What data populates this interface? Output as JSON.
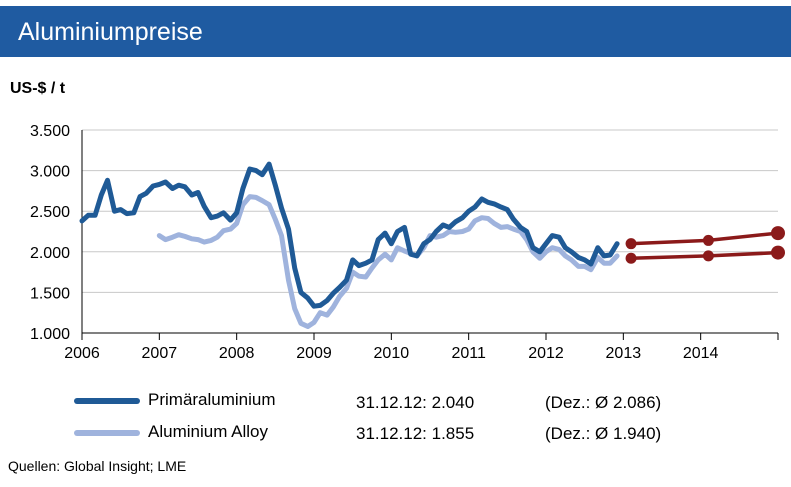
{
  "header": {
    "title": "Aluminiumpreise"
  },
  "unit_label": "US-$ / t",
  "legend": [
    {
      "label": "Primäraluminium",
      "value": "31.12.12: 2.040",
      "avg": "(Dez.: Ø 2.086)"
    },
    {
      "label": "Aluminium Alloy",
      "value": "31.12.12: 1.855",
      "avg": "(Dez.: Ø 1.940)"
    }
  ],
  "source": "Quellen: Global Insight; LME",
  "colors": {
    "title_bg": "#1f5ba1",
    "primary": "#1f5a96",
    "alloy": "#9fb3dd",
    "forecast": "#8b1a1a",
    "grid": "#c8c8c8"
  },
  "chart_data": {
    "type": "line",
    "ylabel": "US-$ / t",
    "ylim": [
      1000,
      3500
    ],
    "xlim": [
      2006,
      2015
    ],
    "grid": true,
    "y_ticks": [
      1000,
      1500,
      2000,
      2500,
      3000,
      3500
    ],
    "y_tick_labels": [
      "1.000",
      "1.500",
      "2.000",
      "2.500",
      "3.000",
      "3.500"
    ],
    "x_ticks": [
      2006,
      2007,
      2008,
      2009,
      2010,
      2011,
      2012,
      2013,
      2014
    ],
    "x_tick_labels": [
      "2006",
      "2007",
      "2008",
      "2009",
      "2010",
      "2011",
      "2012",
      "2013",
      "2014"
    ],
    "series": [
      {
        "name": "Primäraluminium",
        "x": [
          2006.0,
          2006.08,
          2006.17,
          2006.25,
          2006.33,
          2006.42,
          2006.5,
          2006.58,
          2006.67,
          2006.75,
          2006.83,
          2006.92,
          2007.0,
          2007.08,
          2007.17,
          2007.25,
          2007.33,
          2007.42,
          2007.5,
          2007.58,
          2007.67,
          2007.75,
          2007.83,
          2007.92,
          2008.0,
          2008.08,
          2008.17,
          2008.25,
          2008.33,
          2008.42,
          2008.5,
          2008.58,
          2008.67,
          2008.75,
          2008.83,
          2008.92,
          2009.0,
          2009.08,
          2009.17,
          2009.25,
          2009.33,
          2009.42,
          2009.5,
          2009.58,
          2009.67,
          2009.75,
          2009.83,
          2009.92,
          2010.0,
          2010.08,
          2010.17,
          2010.25,
          2010.33,
          2010.42,
          2010.5,
          2010.58,
          2010.67,
          2010.75,
          2010.83,
          2010.92,
          2011.0,
          2011.08,
          2011.17,
          2011.25,
          2011.33,
          2011.42,
          2011.5,
          2011.58,
          2011.67,
          2011.75,
          2011.83,
          2011.92,
          2012.0,
          2012.08,
          2012.17,
          2012.25,
          2012.33,
          2012.42,
          2012.5,
          2012.58,
          2012.67,
          2012.75,
          2012.83,
          2012.92
        ],
        "values": [
          2380,
          2450,
          2450,
          2700,
          2880,
          2500,
          2520,
          2470,
          2480,
          2680,
          2720,
          2810,
          2830,
          2860,
          2780,
          2820,
          2800,
          2700,
          2730,
          2560,
          2420,
          2440,
          2480,
          2390,
          2480,
          2780,
          3020,
          3000,
          2950,
          3080,
          2820,
          2540,
          2280,
          1800,
          1500,
          1430,
          1330,
          1340,
          1400,
          1490,
          1560,
          1650,
          1900,
          1830,
          1860,
          1900,
          2150,
          2230,
          2100,
          2250,
          2300,
          1970,
          1950,
          2100,
          2150,
          2250,
          2330,
          2300,
          2370,
          2420,
          2500,
          2550,
          2650,
          2610,
          2590,
          2550,
          2520,
          2400,
          2300,
          2250,
          2050,
          2000,
          2100,
          2200,
          2180,
          2050,
          2000,
          1930,
          1900,
          1850,
          2050,
          1950,
          1960,
          2100
        ]
      },
      {
        "name": "Aluminium Alloy",
        "x": [
          2007.0,
          2007.08,
          2007.17,
          2007.25,
          2007.33,
          2007.42,
          2007.5,
          2007.58,
          2007.67,
          2007.75,
          2007.83,
          2007.92,
          2008.0,
          2008.08,
          2008.17,
          2008.25,
          2008.33,
          2008.42,
          2008.5,
          2008.58,
          2008.67,
          2008.75,
          2008.83,
          2008.92,
          2009.0,
          2009.08,
          2009.17,
          2009.25,
          2009.33,
          2009.42,
          2009.5,
          2009.58,
          2009.67,
          2009.75,
          2009.83,
          2009.92,
          2010.0,
          2010.08,
          2010.17,
          2010.25,
          2010.33,
          2010.42,
          2010.5,
          2010.58,
          2010.67,
          2010.75,
          2010.83,
          2010.92,
          2011.0,
          2011.08,
          2011.17,
          2011.25,
          2011.33,
          2011.42,
          2011.5,
          2011.58,
          2011.67,
          2011.75,
          2011.83,
          2011.92,
          2012.0,
          2012.08,
          2012.17,
          2012.25,
          2012.33,
          2012.42,
          2012.5,
          2012.58,
          2012.67,
          2012.75,
          2012.83,
          2012.92
        ],
        "values": [
          2200,
          2150,
          2180,
          2210,
          2190,
          2160,
          2150,
          2120,
          2140,
          2180,
          2260,
          2280,
          2350,
          2580,
          2680,
          2670,
          2630,
          2580,
          2400,
          2200,
          1650,
          1300,
          1120,
          1080,
          1130,
          1250,
          1220,
          1320,
          1450,
          1550,
          1750,
          1700,
          1690,
          1800,
          1900,
          1970,
          1900,
          2050,
          2010,
          1980,
          1950,
          2050,
          2200,
          2180,
          2200,
          2250,
          2240,
          2250,
          2280,
          2380,
          2420,
          2410,
          2350,
          2300,
          2310,
          2280,
          2250,
          2150,
          2000,
          1920,
          2000,
          2050,
          2030,
          1950,
          1900,
          1820,
          1820,
          1780,
          1930,
          1860,
          1860,
          1950
        ]
      },
      {
        "name": "Primäraluminium forecast",
        "x": [
          2013.1,
          2014.1,
          2015.0
        ],
        "values": [
          2100,
          2140,
          2230
        ]
      },
      {
        "name": "Aluminium Alloy forecast",
        "x": [
          2013.1,
          2014.1,
          2015.0
        ],
        "values": [
          1920,
          1950,
          1990
        ]
      }
    ]
  }
}
